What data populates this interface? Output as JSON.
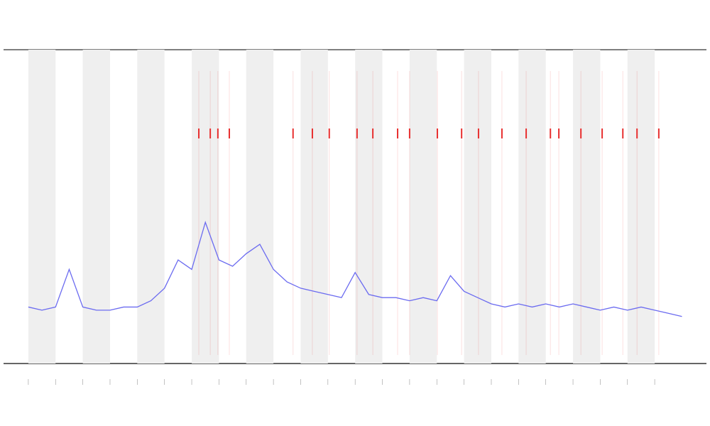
{
  "chart_data": {
    "type": "line",
    "x": [
      0,
      0.5,
      1,
      1.5,
      2,
      2.5,
      3,
      3.5,
      4,
      4.5,
      5,
      5.5,
      6,
      6.5,
      7,
      7.5,
      8,
      8.5,
      9,
      9.5,
      10,
      10.5,
      11,
      11.5,
      12,
      12.5,
      13,
      13.5,
      14,
      14.5,
      15,
      15.5,
      16,
      16.5,
      17,
      17.5,
      18,
      18.5,
      19,
      19.5,
      20,
      20.5,
      21,
      21.5,
      22,
      22.5,
      23,
      23.5,
      24
    ],
    "series": [
      {
        "color": "#6b6bf0",
        "values": [
          18,
          17,
          18,
          30,
          18,
          17,
          17,
          18,
          18,
          20,
          24,
          33,
          30,
          45,
          33,
          31,
          35,
          38,
          30,
          26,
          24,
          23,
          22,
          21,
          29,
          22,
          21,
          21,
          20,
          21,
          20,
          28,
          23,
          21,
          19,
          18,
          19,
          18,
          19,
          18,
          19,
          18,
          17,
          18,
          17,
          18,
          17,
          16,
          15
        ]
      }
    ],
    "xlim": [
      -0.91,
      24.9
    ],
    "ylim": [
      0,
      100
    ],
    "xticks": [
      0,
      1,
      2,
      3,
      4,
      5,
      6,
      7,
      8,
      9,
      10,
      11,
      12,
      13,
      14,
      15,
      16,
      17,
      18,
      19,
      20,
      21,
      22,
      23
    ],
    "bands": [
      [
        0,
        1
      ],
      [
        2,
        3
      ],
      [
        4,
        5
      ],
      [
        6,
        7
      ],
      [
        8,
        9
      ],
      [
        10,
        11
      ],
      [
        12,
        13
      ],
      [
        14,
        15
      ],
      [
        16,
        17
      ],
      [
        18,
        19
      ],
      [
        20,
        21
      ],
      [
        22,
        23
      ]
    ],
    "band_color": "#efefef",
    "events": [
      6.26,
      6.68,
      6.96,
      7.38,
      9.72,
      10.43,
      11.05,
      12.07,
      12.65,
      13.56,
      14.0,
      15.02,
      15.91,
      16.53,
      17.39,
      18.28,
      19.17,
      19.48,
      20.29,
      21.07,
      21.83,
      22.35,
      23.15
    ],
    "event_color": "#e83030"
  }
}
